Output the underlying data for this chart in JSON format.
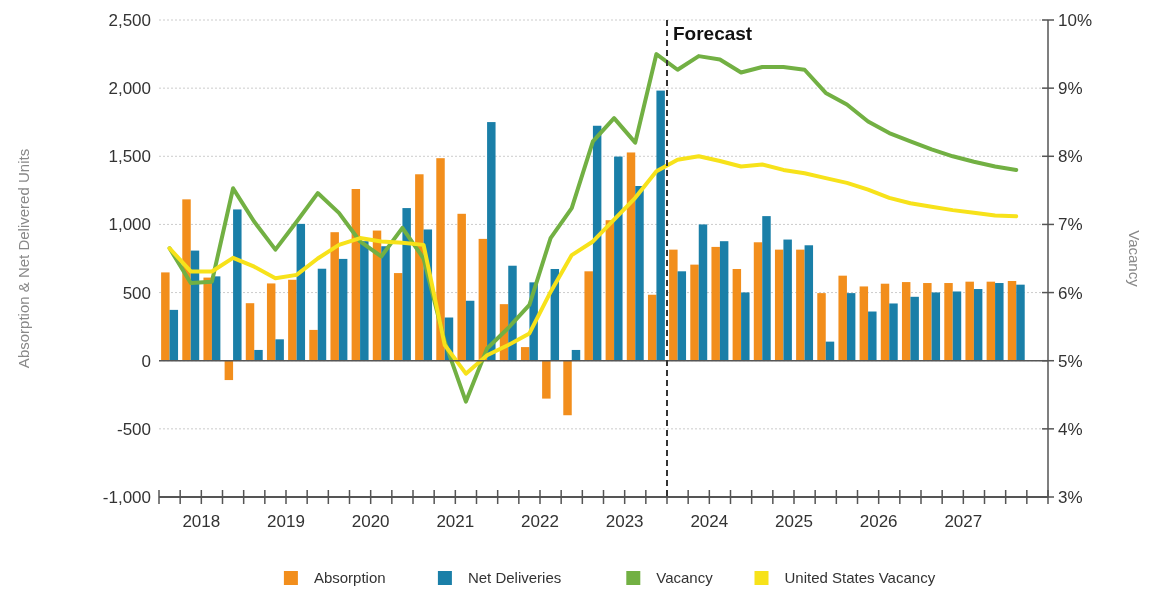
{
  "chart_data": {
    "type": "bar",
    "ylabel": "Absorption & Net Delivered Units",
    "y2label": "Vacancy",
    "x": [
      2018.125,
      2018.375,
      2018.625,
      2018.875,
      2019.125,
      2019.375,
      2019.625,
      2019.875,
      2020.125,
      2020.375,
      2020.625,
      2020.875,
      2021.125,
      2021.375,
      2021.625,
      2021.875,
      2022.125,
      2022.375,
      2022.625,
      2022.875,
      2023.125,
      2023.375,
      2023.625,
      2023.875,
      2024.125,
      2024.375,
      2024.625,
      2024.875,
      2025.125,
      2025.375,
      2025.625,
      2025.875,
      2026.125,
      2026.375,
      2026.625,
      2026.875,
      2027.125,
      2027.375,
      2027.625,
      2027.875,
      2028.125
    ],
    "series": [
      {
        "name": "Absorption",
        "color": "#f28e1c",
        "values": [
          648,
          1184,
          610,
          -142,
          422,
          567,
          594,
          226,
          943,
          1260,
          955,
          643,
          1368,
          1486,
          1078,
          894,
          415,
          100,
          -278,
          -400,
          656,
          1031,
          1528,
          484,
          815,
          705,
          835,
          673,
          869,
          815,
          815,
          496,
          624,
          545,
          565,
          577,
          570,
          570,
          580,
          580,
          585
        ]
      },
      {
        "name": "Net Deliveries",
        "color": "#1a7fa8",
        "values": [
          373,
          808,
          619,
          1110,
          79,
          157,
          1004,
          675,
          747,
          877,
          840,
          1120,
          963,
          317,
          440,
          1751,
          697,
          575,
          673,
          79,
          1724,
          1498,
          1282,
          1982,
          656,
          1000,
          877,
          501,
          1061,
          889,
          847,
          140,
          496,
          361,
          420,
          469,
          501,
          508,
          526,
          570,
          558
        ]
      },
      {
        "name": "Vacancy",
        "type": "line",
        "axis": "y2",
        "color": "#72b043",
        "values": [
          6.65,
          6.14,
          6.16,
          7.53,
          7.04,
          6.63,
          7.04,
          7.46,
          7.17,
          6.75,
          6.53,
          6.95,
          6.5,
          5.28,
          4.4,
          5.18,
          5.48,
          5.82,
          6.8,
          7.24,
          8.22,
          8.56,
          8.2,
          9.5,
          9.27,
          9.47,
          9.42,
          9.23,
          9.31,
          9.31,
          9.27,
          8.93,
          8.76,
          8.51,
          8.34,
          8.22,
          8.1,
          8.0,
          7.92,
          7.85,
          7.8
        ]
      },
      {
        "name": "United States Vacancy",
        "type": "line",
        "axis": "y2",
        "color": "#f7e21a",
        "values": [
          6.65,
          6.31,
          6.31,
          6.51,
          6.38,
          6.21,
          6.26,
          6.5,
          6.7,
          6.8,
          6.75,
          6.73,
          6.7,
          5.23,
          4.81,
          5.08,
          5.23,
          5.4,
          6.01,
          6.55,
          6.75,
          7.07,
          7.39,
          7.78,
          7.95,
          8.0,
          7.93,
          7.85,
          7.88,
          7.8,
          7.75,
          7.68,
          7.61,
          7.51,
          7.39,
          7.31,
          7.26,
          7.21,
          7.17,
          7.13,
          7.12
        ]
      }
    ],
    "xlim": [
      2018,
      2028.5
    ],
    "xticks": [
      {
        "value": 2018,
        "label": null
      },
      {
        "value": 2018.25,
        "label": null
      },
      {
        "value": 2018.5,
        "label": "2018"
      },
      {
        "value": 2018.75,
        "label": null
      },
      {
        "value": 2019,
        "label": null
      },
      {
        "value": 2019.25,
        "label": null
      },
      {
        "value": 2019.5,
        "label": "2019"
      },
      {
        "value": 2019.75,
        "label": null
      },
      {
        "value": 2020,
        "label": null
      },
      {
        "value": 2020.25,
        "label": null
      },
      {
        "value": 2020.5,
        "label": "2020"
      },
      {
        "value": 2020.75,
        "label": null
      },
      {
        "value": 2021,
        "label": null
      },
      {
        "value": 2021.25,
        "label": null
      },
      {
        "value": 2021.5,
        "label": "2021"
      },
      {
        "value": 2021.75,
        "label": null
      },
      {
        "value": 2022,
        "label": null
      },
      {
        "value": 2022.25,
        "label": null
      },
      {
        "value": 2022.5,
        "label": "2022"
      },
      {
        "value": 2022.75,
        "label": null
      },
      {
        "value": 2023,
        "label": null
      },
      {
        "value": 2023.25,
        "label": null
      },
      {
        "value": 2023.5,
        "label": "2023"
      },
      {
        "value": 2023.75,
        "label": null
      },
      {
        "value": 2024,
        "label": null
      },
      {
        "value": 2024.25,
        "label": null
      },
      {
        "value": 2024.5,
        "label": "2024"
      },
      {
        "value": 2024.75,
        "label": null
      },
      {
        "value": 2025,
        "label": null
      },
      {
        "value": 2025.25,
        "label": null
      },
      {
        "value": 2025.5,
        "label": "2025"
      },
      {
        "value": 2025.75,
        "label": null
      },
      {
        "value": 2026,
        "label": null
      },
      {
        "value": 2026.25,
        "label": null
      },
      {
        "value": 2026.5,
        "label": "2026"
      },
      {
        "value": 2026.75,
        "label": null
      },
      {
        "value": 2027,
        "label": null
      },
      {
        "value": 2027.25,
        "label": null
      },
      {
        "value": 2027.5,
        "label": "2027"
      },
      {
        "value": 2027.75,
        "label": null
      },
      {
        "value": 2028,
        "label": null
      },
      {
        "value": 2028.25,
        "label": null
      },
      {
        "value": 2028.5,
        "label": null
      }
    ],
    "ylim": [
      -1000,
      2500
    ],
    "yticks": [
      {
        "value": -1000,
        "label": "-1,000"
      },
      -500,
      0,
      500,
      {
        "value": 1000,
        "label": "1,000"
      },
      {
        "value": 1500,
        "label": "1,500"
      },
      {
        "value": 2000,
        "label": "2,000"
      },
      {
        "value": 2500,
        "label": "2,500"
      }
    ],
    "y2lim": [
      3,
      10
    ],
    "y2ticks": [
      {
        "value": 3,
        "label": "3%"
      },
      {
        "value": 4,
        "label": "4%"
      },
      {
        "value": 5,
        "label": "5%"
      },
      {
        "value": 6,
        "label": "6%"
      },
      {
        "value": 7,
        "label": "7%"
      },
      {
        "value": 8,
        "label": "8%"
      },
      {
        "value": 9,
        "label": "9%"
      },
      {
        "value": 10,
        "label": "10%"
      }
    ],
    "ref_lines": [
      {
        "axis": "x",
        "value": 2024,
        "label": "Forecast",
        "color": "#333333",
        "line_style": "dashed"
      }
    ],
    "grid": "y",
    "legend": "bottom"
  }
}
